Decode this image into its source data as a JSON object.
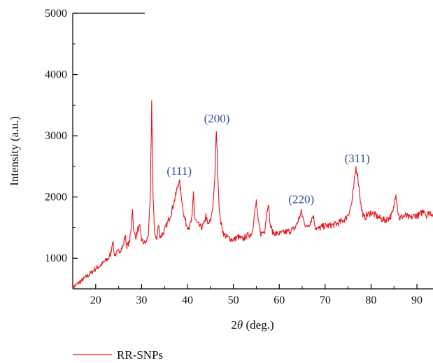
{
  "chart_data": {
    "type": "line",
    "title": "",
    "xlabel_pre": "2",
    "xlabel_theta": "θ",
    "xlabel_post": " (deg.)",
    "ylabel": "Intensity (a.u.)",
    "xlim": [
      15,
      93.5
    ],
    "ylim": [
      500,
      5000
    ],
    "xticks": [
      20,
      30,
      40,
      50,
      60,
      70,
      80,
      90
    ],
    "yticks": [
      1000,
      2000,
      3000,
      4000,
      5000
    ],
    "legend_position": "bottom-left",
    "grid": false,
    "series": [
      {
        "name": "RR-SNPs",
        "color": "#e8131b",
        "x": [
          15,
          16,
          17,
          18,
          19,
          20,
          21,
          22,
          22.8,
          23.3,
          23.7,
          24.0,
          24.3,
          24.8,
          25.5,
          26.0,
          26.4,
          26.8,
          27.3,
          27.7,
          28.0,
          28.3,
          28.8,
          29.2,
          29.6,
          30.0,
          30.5,
          31.0,
          31.5,
          31.9,
          32.2,
          32.5,
          32.8,
          33.3,
          33.7,
          34.0,
          34.4,
          35.0,
          35.5,
          36.0,
          36.5,
          37.0,
          37.5,
          38.0,
          38.3,
          38.7,
          39.2,
          39.8,
          40.4,
          41.0,
          41.3,
          41.6,
          41.9,
          42.3,
          43.0,
          43.6,
          44.0,
          44.4,
          45.0,
          45.5,
          45.9,
          46.3,
          46.6,
          47.0,
          47.5,
          48.0,
          49.0,
          50.0,
          51.0,
          52.0,
          53.0,
          54.0,
          54.6,
          55.0,
          55.4,
          56.0,
          56.8,
          57.2,
          57.6,
          58.0,
          58.6,
          59.5,
          60.5,
          61.5,
          62.5,
          63.5,
          64.3,
          64.8,
          65.4,
          66.0,
          66.8,
          67.4,
          67.9,
          68.5,
          69.5,
          70.5,
          71.5,
          72.5,
          73.5,
          74.5,
          75.2,
          75.8,
          76.3,
          76.7,
          77.0,
          77.4,
          77.9,
          78.5,
          79.0,
          79.5,
          80.0,
          81.0,
          82.0,
          83.0,
          84.0,
          84.8,
          85.4,
          85.8,
          86.2,
          86.8,
          87.5,
          88.5,
          89.5,
          90.5,
          91.2,
          91.6,
          92.0,
          92.8,
          93.5
        ],
        "y": [
          520,
          580,
          640,
          700,
          760,
          830,
          880,
          950,
          1000,
          1080,
          1300,
          1080,
          1060,
          1100,
          1150,
          1200,
          1380,
          1200,
          1250,
          1450,
          1830,
          1420,
          1350,
          1480,
          1500,
          1300,
          1250,
          1260,
          1400,
          2000,
          3550,
          2000,
          1450,
          1300,
          1550,
          1350,
          1380,
          1450,
          1550,
          1650,
          1750,
          1900,
          2050,
          2230,
          2220,
          2000,
          1700,
          1550,
          1500,
          1650,
          2080,
          1650,
          1600,
          1550,
          1500,
          1550,
          1700,
          1550,
          1600,
          1850,
          2200,
          3130,
          2400,
          1700,
          1500,
          1380,
          1330,
          1300,
          1350,
          1310,
          1370,
          1400,
          1700,
          1930,
          1600,
          1400,
          1450,
          1700,
          1920,
          1550,
          1420,
          1400,
          1410,
          1430,
          1450,
          1500,
          1650,
          1750,
          1600,
          1500,
          1600,
          1700,
          1500,
          1480,
          1520,
          1530,
          1540,
          1560,
          1600,
          1650,
          1750,
          1900,
          2200,
          2480,
          2400,
          2150,
          1800,
          1650,
          1700,
          1720,
          1750,
          1700,
          1650,
          1620,
          1660,
          1750,
          2080,
          1800,
          1650,
          1680,
          1700,
          1650,
          1700,
          1700,
          1760,
          1800,
          1700,
          1750,
          1720
        ]
      }
    ],
    "annotations": [
      {
        "text": "(111)",
        "x": 38.2,
        "y": 2360
      },
      {
        "text": "(200)",
        "x": 46.4,
        "y": 3220
      },
      {
        "text": "(220)",
        "x": 64.8,
        "y": 1900
      },
      {
        "text": "(311)",
        "x": 77.0,
        "y": 2570
      }
    ]
  }
}
